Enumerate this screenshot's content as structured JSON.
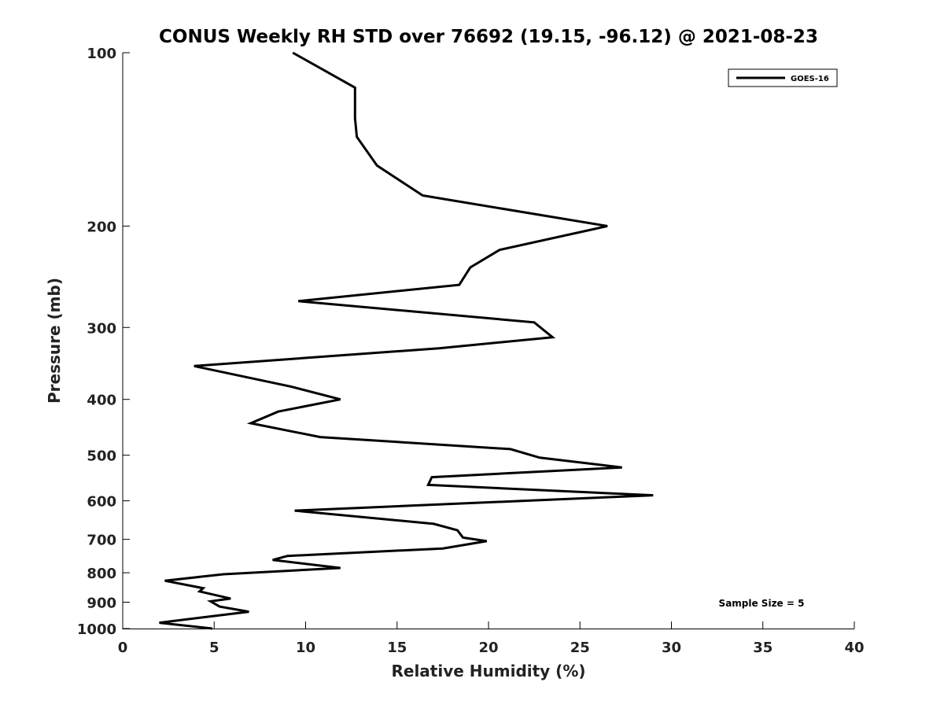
{
  "chart_data": {
    "type": "line",
    "title": "CONUS Weekly RH STD over 76692 (19.15, -96.12) @ 2021-08-23",
    "xlabel": "Relative Humidity (%)",
    "ylabel": "Pressure (mb)",
    "xlim": [
      0,
      40
    ],
    "ylim": [
      1000,
      100
    ],
    "yscale": "log",
    "y_reversed": true,
    "grid": false,
    "xticks": [
      0,
      5,
      10,
      15,
      20,
      25,
      30,
      35,
      40
    ],
    "yticks": [
      100,
      200,
      300,
      400,
      500,
      600,
      700,
      800,
      900,
      1000
    ],
    "legend_position": "top-right",
    "annotation": "Sample Size = 5",
    "series": [
      {
        "name": "GOES-16",
        "color": "#000000",
        "x": [
          9.3,
          12.7,
          12.7,
          12.8,
          13.9,
          16.4,
          26.5,
          20.6,
          19.0,
          18.4,
          9.6,
          22.5,
          23.5,
          17.3,
          3.9,
          9.2,
          11.9,
          8.5,
          7.0,
          10.8,
          21.2,
          22.8,
          27.3,
          16.9,
          16.7,
          29.0,
          9.4,
          17.0,
          18.3,
          18.6,
          19.9,
          17.5,
          9.0,
          8.2,
          11.9,
          5.5,
          2.3,
          4.4,
          4.2,
          5.9,
          4.8,
          5.3,
          6.9,
          2.0,
          4.9
        ],
        "y": [
          100,
          115,
          130,
          140,
          157,
          177,
          200,
          220,
          236,
          253,
          270,
          294,
          312,
          326,
          350,
          380,
          400,
          420,
          440,
          465,
          488,
          505,
          525,
          546,
          563,
          587,
          624,
          658,
          675,
          695,
          705,
          726,
          748,
          760,
          785,
          805,
          826,
          851,
          862,
          887,
          897,
          916,
          935,
          977,
          1000
        ]
      }
    ]
  }
}
